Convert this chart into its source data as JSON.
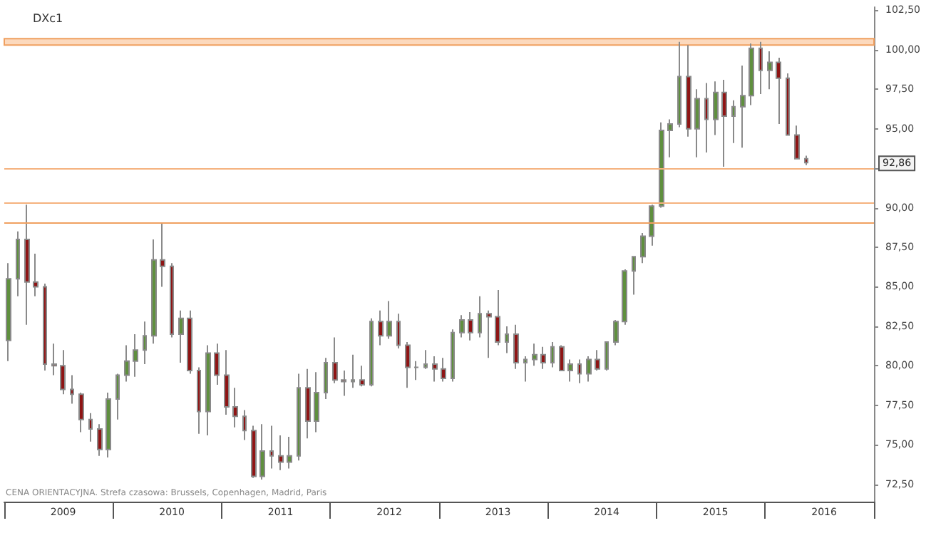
{
  "chart_data": {
    "type": "candlestick",
    "title": "DXc1",
    "categories": [
      null,
      null,
      null,
      null,
      null,
      null,
      "2009",
      null,
      null,
      null,
      null,
      null,
      null,
      null,
      null,
      null,
      null,
      null,
      "2010",
      null,
      null,
      null,
      null,
      null,
      null,
      null,
      null,
      null,
      null,
      null,
      "2011",
      null,
      null,
      null,
      null,
      null,
      null,
      null,
      null,
      null,
      null,
      null,
      "2012",
      null,
      null,
      null,
      null,
      null,
      null,
      null,
      null,
      null,
      null,
      null,
      "2013",
      null,
      null,
      null,
      null,
      null,
      null,
      null,
      null,
      null,
      null,
      null,
      "2014",
      null,
      null,
      null,
      null,
      null,
      null,
      null,
      null,
      null,
      null,
      null,
      "2015",
      null,
      null,
      null,
      null,
      null,
      null,
      null,
      null,
      null,
      null,
      null,
      "2016",
      null,
      null,
      null,
      null,
      null
    ],
    "ohlc": [
      [
        81.6,
        86.5,
        80.3,
        85.5
      ],
      [
        85.5,
        88.5,
        84.4,
        88.0
      ],
      [
        88.0,
        90.2,
        82.6,
        85.3
      ],
      [
        85.3,
        87.1,
        84.4,
        85.0
      ],
      [
        85.0,
        85.2,
        79.7,
        80.1
      ],
      [
        80.1,
        81.4,
        79.4,
        80.0
      ],
      [
        80.0,
        81.0,
        78.2,
        78.5
      ],
      [
        78.5,
        79.4,
        77.6,
        78.2
      ],
      [
        78.2,
        78.3,
        75.8,
        76.6
      ],
      [
        76.6,
        77.0,
        75.2,
        76.0
      ],
      [
        76.0,
        76.3,
        74.3,
        74.7
      ],
      [
        74.7,
        78.3,
        74.2,
        77.9
      ],
      [
        77.9,
        79.5,
        76.6,
        79.4
      ],
      [
        79.4,
        81.3,
        79.0,
        80.3
      ],
      [
        80.3,
        82.0,
        79.3,
        81.0
      ],
      [
        81.0,
        82.8,
        80.1,
        81.9
      ],
      [
        81.9,
        88.0,
        81.4,
        86.7
      ],
      [
        86.7,
        89.0,
        85.0,
        86.3
      ],
      [
        86.3,
        86.5,
        81.8,
        82.0
      ],
      [
        82.0,
        83.5,
        80.2,
        83.0
      ],
      [
        83.0,
        83.5,
        79.5,
        79.7
      ],
      [
        79.7,
        79.9,
        75.7,
        77.1
      ],
      [
        77.1,
        81.3,
        75.6,
        80.8
      ],
      [
        80.8,
        81.4,
        78.8,
        79.4
      ],
      [
        79.4,
        81.0,
        76.9,
        77.4
      ],
      [
        77.4,
        78.6,
        76.1,
        76.8
      ],
      [
        76.8,
        77.2,
        75.3,
        75.9
      ],
      [
        75.9,
        76.2,
        72.9,
        73.0
      ],
      [
        73.0,
        76.3,
        72.8,
        74.6
      ],
      [
        74.6,
        76.2,
        73.5,
        74.3
      ],
      [
        74.3,
        75.6,
        73.4,
        73.9
      ],
      [
        73.9,
        75.5,
        73.5,
        74.3
      ],
      [
        74.3,
        79.5,
        74.0,
        78.6
      ],
      [
        78.6,
        79.8,
        75.4,
        76.5
      ],
      [
        76.5,
        79.6,
        75.8,
        78.3
      ],
      [
        78.3,
        80.5,
        77.9,
        80.2
      ],
      [
        80.2,
        81.8,
        78.9,
        79.1
      ],
      [
        79.1,
        79.7,
        78.1,
        79.0
      ],
      [
        79.0,
        80.7,
        78.6,
        79.1
      ],
      [
        79.1,
        80.0,
        78.7,
        78.8
      ],
      [
        78.8,
        83.0,
        78.7,
        82.8
      ],
      [
        82.8,
        83.5,
        81.3,
        81.9
      ],
      [
        81.9,
        84.1,
        81.7,
        82.8
      ],
      [
        82.8,
        83.3,
        81.1,
        81.3
      ],
      [
        81.3,
        81.5,
        78.6,
        79.9
      ],
      [
        79.9,
        80.3,
        79.1,
        79.9
      ],
      [
        79.9,
        81.0,
        79.8,
        80.1
      ],
      [
        80.1,
        80.6,
        79.0,
        79.8
      ],
      [
        79.8,
        80.5,
        79.0,
        79.2
      ],
      [
        79.2,
        82.3,
        79.0,
        82.1
      ],
      [
        82.1,
        83.2,
        81.8,
        82.9
      ],
      [
        82.9,
        83.4,
        81.6,
        82.1
      ],
      [
        82.1,
        84.4,
        81.8,
        83.3
      ],
      [
        83.3,
        83.5,
        80.5,
        83.1
      ],
      [
        83.1,
        84.8,
        81.3,
        81.5
      ],
      [
        81.5,
        82.5,
        80.8,
        82.0
      ],
      [
        82.0,
        82.6,
        79.8,
        80.2
      ],
      [
        80.2,
        80.6,
        79.0,
        80.4
      ],
      [
        80.4,
        81.4,
        80.0,
        80.7
      ],
      [
        80.7,
        81.2,
        79.8,
        80.2
      ],
      [
        80.2,
        81.5,
        79.9,
        81.2
      ],
      [
        81.2,
        81.3,
        79.7,
        79.7
      ],
      [
        79.7,
        80.4,
        79.0,
        80.1
      ],
      [
        80.1,
        80.4,
        78.9,
        79.5
      ],
      [
        79.5,
        80.6,
        79.0,
        80.4
      ],
      [
        80.4,
        81.0,
        79.7,
        79.8
      ],
      [
        79.8,
        81.5,
        79.7,
        81.5
      ],
      [
        81.5,
        82.9,
        81.3,
        82.8
      ],
      [
        82.8,
        86.1,
        82.6,
        86.0
      ],
      [
        86.0,
        86.9,
        84.5,
        86.9
      ],
      [
        86.9,
        88.4,
        86.5,
        88.2
      ],
      [
        88.2,
        90.2,
        87.6,
        90.1
      ],
      [
        90.1,
        95.4,
        90.0,
        94.9
      ],
      [
        94.9,
        95.6,
        93.2,
        95.3
      ],
      [
        95.3,
        100.5,
        95.1,
        98.3
      ],
      [
        98.3,
        100.3,
        94.5,
        95.0
      ],
      [
        95.0,
        97.5,
        93.2,
        96.9
      ],
      [
        96.9,
        97.9,
        93.5,
        95.6
      ],
      [
        95.6,
        98.0,
        94.6,
        97.3
      ],
      [
        97.3,
        98.1,
        92.6,
        95.8
      ],
      [
        95.8,
        96.8,
        94.1,
        96.4
      ],
      [
        96.4,
        99.0,
        93.8,
        97.1
      ],
      [
        97.1,
        100.4,
        96.5,
        100.1
      ],
      [
        100.1,
        100.5,
        97.2,
        98.7
      ],
      [
        98.7,
        99.9,
        97.5,
        99.2
      ],
      [
        99.2,
        99.5,
        95.3,
        98.2
      ],
      [
        98.2,
        98.5,
        94.6,
        94.6
      ],
      [
        94.6,
        95.2,
        93.1,
        93.1
      ],
      [
        93.1,
        93.3,
        92.7,
        92.86
      ],
      null,
      null,
      null,
      null,
      null,
      null,
      null
    ],
    "ylim": [
      71.4,
      102.7
    ],
    "yticks": [
      {
        "value": 72.5,
        "label": "72,50"
      },
      {
        "value": 75,
        "label": "75,00"
      },
      {
        "value": 77.5,
        "label": "77,50"
      },
      {
        "value": 80,
        "label": "80,00"
      },
      {
        "value": 82.5,
        "label": "82,50"
      },
      {
        "value": 85,
        "label": "85,00"
      },
      {
        "value": 87.5,
        "label": "87,50"
      },
      {
        "value": 90,
        "label": "90,00"
      },
      {
        "value": 92.5,
        "label": null
      },
      {
        "value": 95,
        "label": "95,00"
      },
      {
        "value": 97.5,
        "label": "97,50"
      },
      {
        "value": 100,
        "label": "100,00"
      },
      {
        "value": 102.5,
        "label": "102,50"
      }
    ],
    "ref_lines": [
      {
        "axis": "y",
        "value": 90.3,
        "color": "#f5b27e"
      },
      {
        "axis": "y",
        "value": 89.1,
        "color": "#f0a060"
      },
      {
        "axis": "y",
        "value": 92.5,
        "color": "#f5b27e"
      }
    ],
    "bands": [
      {
        "axis": "y",
        "from": 100.3,
        "to": 100.7,
        "color": "#fcd9bd"
      }
    ],
    "annotations": [
      "92,86",
      "CENA ORIENTACYJNA. Strefa czasowa: Brussels, Copenhagen, Madrid, Paris"
    ],
    "grid": false
  }
}
